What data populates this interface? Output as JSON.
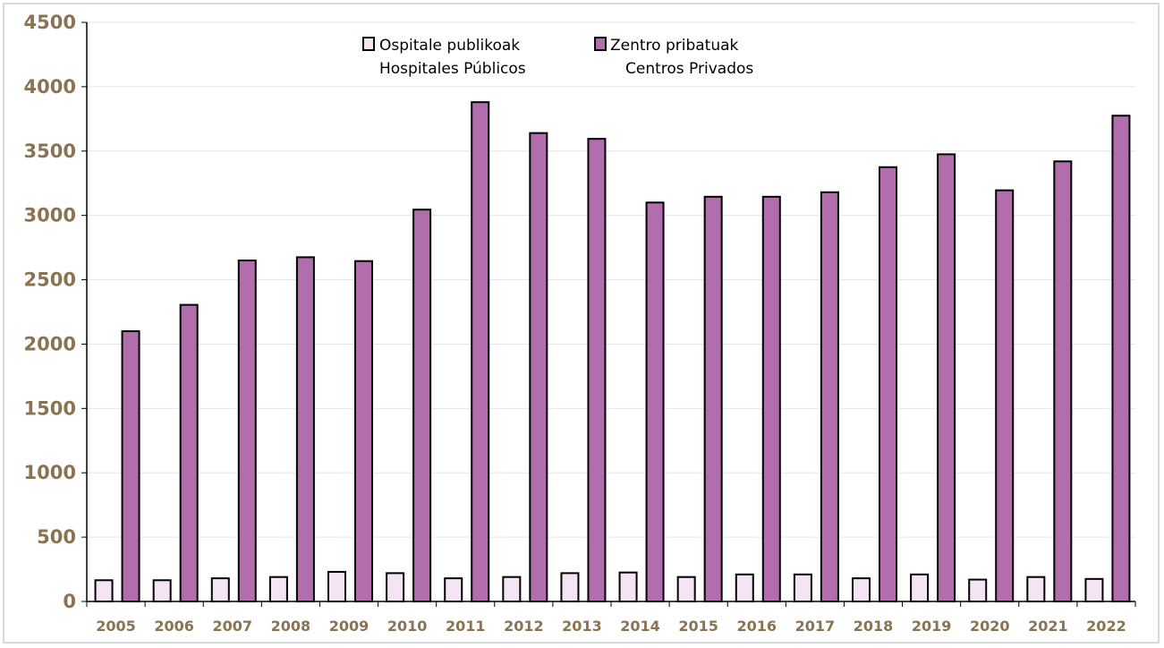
{
  "colors": {
    "public": "#f4e4f4",
    "private": "#b16dac",
    "grid": "#e6e6e6",
    "tick_text": "#8a7352",
    "outline": "#000000"
  },
  "chart_data": {
    "type": "bar",
    "title": "",
    "xlabel": "",
    "ylabel": "",
    "ylim": [
      0,
      4500
    ],
    "yticks": [
      "0",
      "500",
      "1000",
      "1500",
      "2000",
      "2500",
      "3000",
      "3500",
      "4000",
      "4500"
    ],
    "grid": true,
    "legend_position": "top-center",
    "categories": [
      "2005",
      "2006",
      "2007",
      "2008",
      "2009",
      "2010",
      "2011",
      "2012",
      "2013",
      "2014",
      "2015",
      "2016",
      "2017",
      "2018",
      "2019",
      "2020",
      "2021",
      "2022"
    ],
    "series": [
      {
        "name": "Ospitale publikoak",
        "name_line2": "Hospitales Públicos",
        "values": [
          165,
          165,
          180,
          190,
          230,
          220,
          180,
          190,
          220,
          225,
          190,
          210,
          210,
          180,
          210,
          170,
          190,
          175
        ]
      },
      {
        "name": "Zentro pribatuak",
        "name_line2": "Centros Privados",
        "values": [
          2100,
          2305,
          2650,
          2675,
          2645,
          3045,
          3880,
          3640,
          3595,
          3100,
          3145,
          3145,
          3180,
          3375,
          3475,
          3195,
          3420,
          3775
        ]
      }
    ]
  }
}
